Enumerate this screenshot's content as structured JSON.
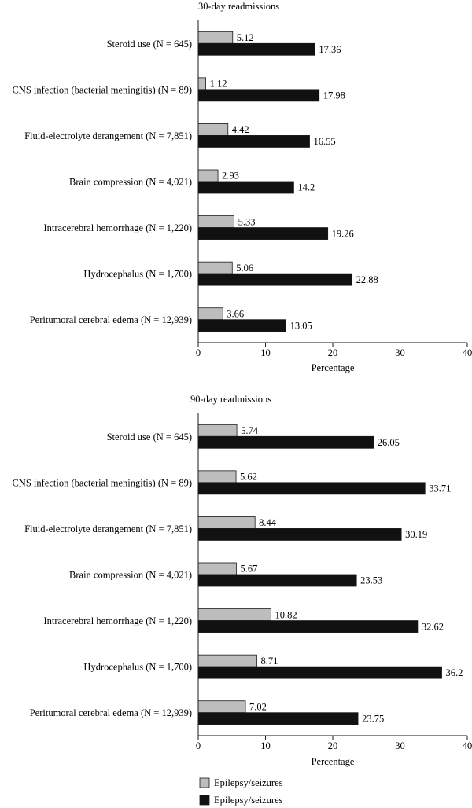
{
  "legend": {
    "items": [
      {
        "label": "Epilepsy/seizures",
        "color": "#bdbdbd"
      },
      {
        "label": "Epilepsy/seizures",
        "color": "#111111"
      }
    ]
  },
  "chart_data": [
    {
      "type": "bar",
      "orientation": "horizontal",
      "title": "30-day readmissions",
      "xlabel": "Percentage",
      "xlim": [
        0,
        40
      ],
      "xticks": [
        0,
        10,
        20,
        30,
        40
      ],
      "grid": false,
      "categories": [
        "Steroid use (N = 645)",
        "CNS infection (bacterial meningitis) (N = 89)",
        "Fluid-electrolyte derangement (N = 7,851)",
        "Brain compression (N = 4,021)",
        "Intracerebral hemorrhage (N = 1,220)",
        "Hydrocephalus (N = 1,700)",
        "Peritumoral cerebral edema (N = 12,939)"
      ],
      "series": [
        {
          "name": "Epilepsy/seizures",
          "color": "#bdbdbd",
          "values": [
            5.12,
            1.12,
            4.42,
            2.93,
            5.33,
            5.06,
            3.66
          ],
          "labels": [
            "5.12",
            "1.12",
            "4.42",
            "2.93",
            "5.33",
            "5.06",
            "3.66"
          ]
        },
        {
          "name": "Epilepsy/seizures",
          "color": "#111111",
          "values": [
            17.36,
            17.98,
            16.55,
            14.2,
            19.26,
            22.88,
            13.05
          ],
          "labels": [
            "17.36",
            "17.98",
            "16.55",
            "14.2",
            "19.26",
            "22.88",
            "13.05"
          ]
        }
      ]
    },
    {
      "type": "bar",
      "orientation": "horizontal",
      "title": "90-day readmissions",
      "xlabel": "Percentage",
      "xlim": [
        0,
        40
      ],
      "xticks": [
        0,
        10,
        20,
        30,
        40
      ],
      "grid": false,
      "legend_position": "bottom-left",
      "categories": [
        "Steroid use (N = 645)",
        "CNS infection (bacterial meningitis) (N = 89)",
        "Fluid-electrolyte derangement (N = 7,851)",
        "Brain compression (N = 4,021)",
        "Intracerebral hemorrhage (N = 1,220)",
        "Hydrocephalus (N = 1,700)",
        "Peritumoral cerebral edema (N = 12,939)"
      ],
      "series": [
        {
          "name": "Epilepsy/seizures",
          "color": "#bdbdbd",
          "values": [
            5.74,
            5.62,
            8.44,
            5.67,
            10.82,
            8.71,
            7.02
          ],
          "labels": [
            "5.74",
            "5.62",
            "8.44",
            "5.67",
            "10.82",
            "8.71",
            "7.02"
          ]
        },
        {
          "name": "Epilepsy/seizures",
          "color": "#111111",
          "values": [
            26.05,
            33.71,
            30.19,
            23.53,
            32.62,
            36.2,
            23.75
          ],
          "labels": [
            "26.05",
            "33.71",
            "30.19",
            "23.53",
            "32.62",
            "36.2",
            "23.75"
          ]
        }
      ]
    }
  ]
}
